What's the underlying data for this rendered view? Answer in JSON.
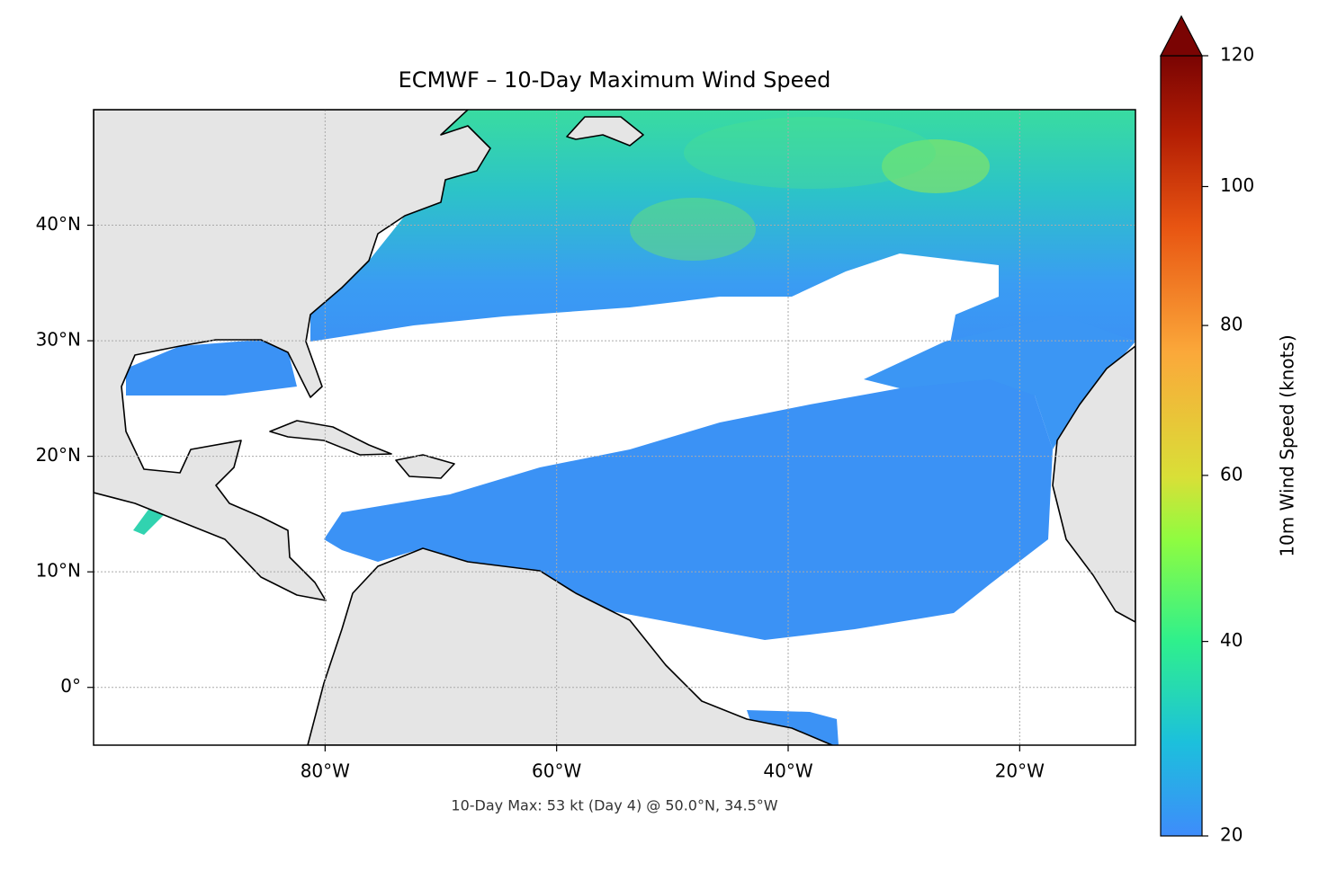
{
  "chart_data": {
    "type": "map",
    "title": "ECMWF – 10-Day Maximum Wind Speed",
    "annotation": "10-Day Max: 53 kt (Day 4) @ 50.0°N, 34.5°W",
    "xlim": [
      -100,
      -10
    ],
    "ylim": [
      -5,
      50
    ],
    "xticks": [
      {
        "value": -80,
        "label": "80°W"
      },
      {
        "value": -60,
        "label": "60°W"
      },
      {
        "value": -40,
        "label": "40°W"
      },
      {
        "value": -20,
        "label": "20°W"
      }
    ],
    "yticks": [
      {
        "value": 0,
        "label": "0°"
      },
      {
        "value": 10,
        "label": "10°N"
      },
      {
        "value": 20,
        "label": "20°N"
      },
      {
        "value": 30,
        "label": "30°N"
      },
      {
        "value": 40,
        "label": "40°N"
      }
    ],
    "grid": true,
    "colorbar": {
      "label": "10m Wind Speed (knots)",
      "lim": [
        20,
        120
      ],
      "ticks": [
        20,
        40,
        60,
        80,
        100,
        120
      ],
      "power": 0.7,
      "extend": "max"
    }
  }
}
